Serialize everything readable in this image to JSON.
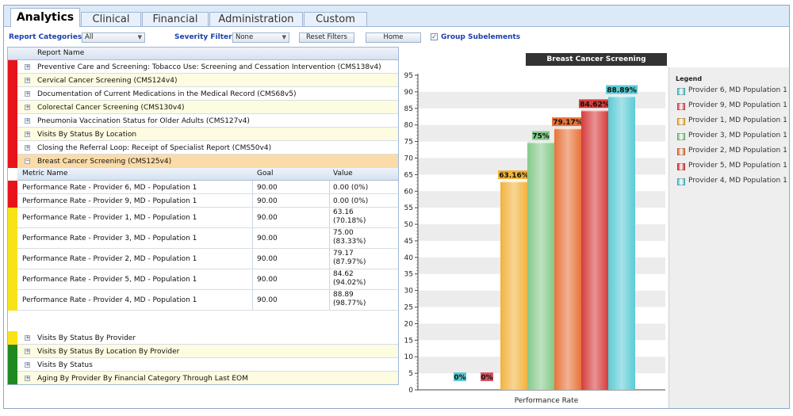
{
  "tabs": [
    {
      "label": "Analytics",
      "active": true
    },
    {
      "label": "Clinical",
      "active": false
    },
    {
      "label": "Financial",
      "active": false
    },
    {
      "label": "Administration",
      "active": false
    },
    {
      "label": "Custom",
      "active": false
    }
  ],
  "filters": {
    "report_categories_label": "Report Categories",
    "report_categories_value": "All",
    "severity_label": "Severity Filter",
    "severity_value": "None",
    "reset_label": "Reset Filters",
    "home_label": "Home",
    "group_subelements_label": "Group Subelements",
    "group_subelements_checked": true
  },
  "report_table": {
    "header": "Report Name",
    "reports_top": [
      {
        "name": "Preventive Care and Screening: Tobacco Use: Screening and Cessation Intervention (CMS138v4)",
        "status": "red"
      },
      {
        "name": "Cervical Cancer Screening (CMS124v4)",
        "status": "red"
      },
      {
        "name": "Documentation of Current Medications in the Medical Record (CMS68v5)",
        "status": "red"
      },
      {
        "name": "Colorectal Cancer Screening (CMS130v4)",
        "status": "red"
      },
      {
        "name": "Pneumonia Vaccination Status for Older Adults (CMS127v4)",
        "status": "red"
      },
      {
        "name": "Visits By Status By Location",
        "status": "red"
      },
      {
        "name": "Closing the Referral Loop: Receipt of Specialist Report (CMS50v4)",
        "status": "red"
      },
      {
        "name": "Breast Cancer Screening (CMS125v4)",
        "status": "red",
        "expanded": true
      }
    ],
    "metric_header": {
      "name": "Metric Name",
      "goal": "Goal",
      "value": "Value"
    },
    "metrics": [
      {
        "name": "Performance Rate - Provider 6, MD - Population 1",
        "goal": "90.00",
        "value": "0.00 (0%)",
        "status": "red"
      },
      {
        "name": "Performance Rate - Provider 9, MD - Population 1",
        "goal": "90.00",
        "value": "0.00 (0%)",
        "status": "red"
      },
      {
        "name": "Performance Rate - Provider 1, MD - Population 1",
        "goal": "90.00",
        "value": "63.16\n(70.18%)",
        "status": "yellow"
      },
      {
        "name": "Performance Rate - Provider 3, MD - Population 1",
        "goal": "90.00",
        "value": "75.00\n(83.33%)",
        "status": "yellow"
      },
      {
        "name": "Performance Rate - Provider 2, MD - Population 1",
        "goal": "90.00",
        "value": "79.17\n(87.97%)",
        "status": "yellow"
      },
      {
        "name": "Performance Rate - Provider 5, MD - Population 1",
        "goal": "90.00",
        "value": "84.62\n(94.02%)",
        "status": "yellow"
      },
      {
        "name": "Performance Rate - Provider 4, MD - Population 1",
        "goal": "90.00",
        "value": "88.89\n(98.77%)",
        "status": "yellow"
      }
    ],
    "reports_bottom": [
      {
        "name": "Visits By Status By Provider",
        "status": "yellow"
      },
      {
        "name": "Visits By Status By Location By Provider",
        "status": "green"
      },
      {
        "name": "Visits By Status",
        "status": "green"
      },
      {
        "name": "Aging By Provider By Financial Category Through Last EOM",
        "status": "green"
      }
    ]
  },
  "status_colors": {
    "red": "#e8141c",
    "yellow": "#f7e318",
    "green": "#1f8a1f"
  },
  "chart_data": {
    "type": "bar",
    "title": "Breast Cancer Screening (CMS125v4)",
    "xlabel": "Performance Rate",
    "ylabel": "",
    "ylim": [
      0,
      95
    ],
    "yticks": [
      0,
      5,
      10,
      15,
      20,
      25,
      30,
      35,
      40,
      45,
      50,
      55,
      60,
      65,
      70,
      75,
      80,
      85,
      90,
      95
    ],
    "categories": [
      "Performance Rate"
    ],
    "series": [
      {
        "name": "Provider 6, MD Population 1",
        "values": [
          0
        ],
        "label": "0%",
        "color": "#5bc8d2"
      },
      {
        "name": "Provider 9, MD Population 1",
        "values": [
          0
        ],
        "label": "0%",
        "color": "#d9555f"
      },
      {
        "name": "Provider 1, MD Population 1",
        "values": [
          63.16
        ],
        "label": "63.16%",
        "color": "#f2b33d"
      },
      {
        "name": "Provider 3, MD Population 1",
        "values": [
          75
        ],
        "label": "75%",
        "color": "#86c98a"
      },
      {
        "name": "Provider 2, MD Population 1",
        "values": [
          79.17
        ],
        "label": "79.17%",
        "color": "#e8733a"
      },
      {
        "name": "Provider 5, MD Population 1",
        "values": [
          84.62
        ],
        "label": "84.62%",
        "color": "#d63c3c"
      },
      {
        "name": "Provider 4, MD Population 1",
        "values": [
          88.89
        ],
        "label": "88.89%",
        "color": "#5ccbd6"
      }
    ],
    "legend": {
      "title": "Legend",
      "position": "right"
    },
    "grid": true
  }
}
